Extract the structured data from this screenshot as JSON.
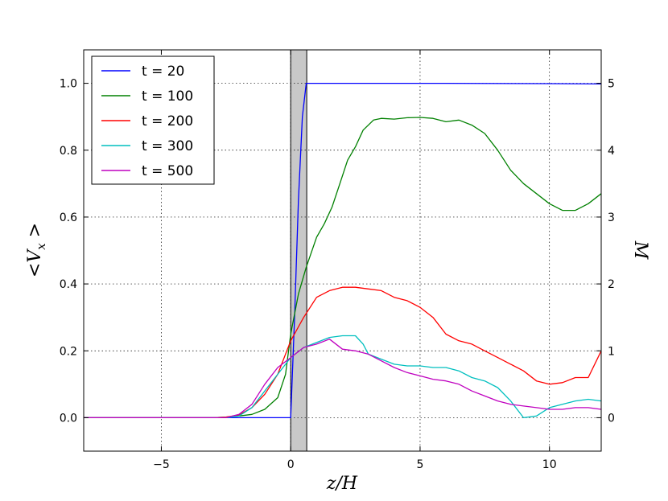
{
  "chart_data": {
    "type": "line",
    "title": "",
    "xlabel": "z/H",
    "ylabel_left": "<V_x>",
    "ylabel_right": "M",
    "xlim": [
      -8,
      12
    ],
    "ylim": [
      -0.1,
      1.1
    ],
    "ylim_right": [
      -0.5,
      5.5
    ],
    "xticks": [
      -5,
      0,
      5,
      10
    ],
    "xtick_labels": [
      "−5",
      "0",
      "5",
      "10"
    ],
    "yticks": [
      0.0,
      0.2,
      0.4,
      0.6,
      0.8,
      1.0
    ],
    "ytick_labels": [
      "0.0",
      "0.2",
      "0.4",
      "0.6",
      "0.8",
      "1.0"
    ],
    "yticks_right": [
      0,
      1,
      2,
      3,
      4,
      5
    ],
    "ytick_labels_right": [
      "0",
      "1",
      "2",
      "3",
      "4",
      "5"
    ],
    "grid": true,
    "legend_position": "top-left",
    "shaded_band": {
      "x0": 0.0,
      "x1": 0.62,
      "color": "#c8c8c8"
    },
    "series": [
      {
        "name": "t = 20",
        "color": "#0000ff",
        "points": [
          [
            -8,
            0.0
          ],
          [
            -0.2,
            0.0
          ],
          [
            0.0,
            0.0
          ],
          [
            0.15,
            0.3
          ],
          [
            0.3,
            0.65
          ],
          [
            0.45,
            0.9
          ],
          [
            0.6,
            1.0
          ],
          [
            2,
            1.0
          ],
          [
            6,
            1.0
          ],
          [
            10,
            0.999
          ],
          [
            12,
            0.998
          ]
        ]
      },
      {
        "name": "t = 100",
        "color": "#008000",
        "points": [
          [
            -8,
            0.0
          ],
          [
            -3,
            0.0
          ],
          [
            -2.5,
            0.002
          ],
          [
            -2,
            0.005
          ],
          [
            -1.5,
            0.01
          ],
          [
            -1.0,
            0.025
          ],
          [
            -0.5,
            0.06
          ],
          [
            -0.2,
            0.13
          ],
          [
            0.0,
            0.25
          ],
          [
            0.3,
            0.37
          ],
          [
            0.6,
            0.45
          ],
          [
            1.0,
            0.54
          ],
          [
            1.3,
            0.58
          ],
          [
            1.6,
            0.63
          ],
          [
            1.9,
            0.7
          ],
          [
            2.2,
            0.77
          ],
          [
            2.5,
            0.81
          ],
          [
            2.8,
            0.86
          ],
          [
            3.2,
            0.89
          ],
          [
            3.5,
            0.895
          ],
          [
            4,
            0.893
          ],
          [
            4.5,
            0.897
          ],
          [
            5,
            0.898
          ],
          [
            5.5,
            0.895
          ],
          [
            6,
            0.885
          ],
          [
            6.5,
            0.89
          ],
          [
            7,
            0.875
          ],
          [
            7.5,
            0.85
          ],
          [
            8,
            0.8
          ],
          [
            8.5,
            0.74
          ],
          [
            9,
            0.7
          ],
          [
            9.5,
            0.67
          ],
          [
            10,
            0.64
          ],
          [
            10.5,
            0.62
          ],
          [
            11,
            0.62
          ],
          [
            11.5,
            0.64
          ],
          [
            12,
            0.67
          ]
        ]
      },
      {
        "name": "t = 200",
        "color": "#ff0000",
        "points": [
          [
            -8,
            0.0
          ],
          [
            -3,
            0.0
          ],
          [
            -2.5,
            0.002
          ],
          [
            -2,
            0.008
          ],
          [
            -1.5,
            0.03
          ],
          [
            -1.0,
            0.07
          ],
          [
            -0.5,
            0.13
          ],
          [
            0.0,
            0.23
          ],
          [
            0.5,
            0.3
          ],
          [
            1.0,
            0.36
          ],
          [
            1.5,
            0.38
          ],
          [
            2.0,
            0.39
          ],
          [
            2.5,
            0.39
          ],
          [
            3.0,
            0.385
          ],
          [
            3.5,
            0.38
          ],
          [
            4,
            0.36
          ],
          [
            4.5,
            0.35
          ],
          [
            5,
            0.33
          ],
          [
            5.5,
            0.3
          ],
          [
            6,
            0.25
          ],
          [
            6.5,
            0.23
          ],
          [
            7,
            0.22
          ],
          [
            7.5,
            0.2
          ],
          [
            8,
            0.18
          ],
          [
            8.5,
            0.16
          ],
          [
            9,
            0.14
          ],
          [
            9.5,
            0.11
          ],
          [
            10,
            0.1
          ],
          [
            10.5,
            0.105
          ],
          [
            11,
            0.12
          ],
          [
            11.5,
            0.12
          ],
          [
            12,
            0.2
          ]
        ]
      },
      {
        "name": "t = 300",
        "color": "#00bfbf",
        "points": [
          [
            -8,
            0.0
          ],
          [
            -3,
            0.0
          ],
          [
            -2.5,
            0.0
          ],
          [
            -2,
            0.005
          ],
          [
            -1.5,
            0.03
          ],
          [
            -1.0,
            0.08
          ],
          [
            -0.5,
            0.13
          ],
          [
            0.0,
            0.18
          ],
          [
            0.5,
            0.21
          ],
          [
            1.0,
            0.225
          ],
          [
            1.5,
            0.24
          ],
          [
            2.0,
            0.245
          ],
          [
            2.5,
            0.245
          ],
          [
            2.8,
            0.22
          ],
          [
            3.0,
            0.19
          ],
          [
            3.5,
            0.175
          ],
          [
            4,
            0.16
          ],
          [
            4.5,
            0.155
          ],
          [
            5,
            0.155
          ],
          [
            5.5,
            0.15
          ],
          [
            6,
            0.15
          ],
          [
            6.5,
            0.14
          ],
          [
            7,
            0.12
          ],
          [
            7.5,
            0.11
          ],
          [
            8,
            0.09
          ],
          [
            8.5,
            0.05
          ],
          [
            9,
            0.0
          ],
          [
            9.5,
            0.005
          ],
          [
            10,
            0.03
          ],
          [
            10.5,
            0.04
          ],
          [
            11,
            0.05
          ],
          [
            11.5,
            0.055
          ],
          [
            12,
            0.05
          ]
        ]
      },
      {
        "name": "t = 500",
        "color": "#bf00bf",
        "points": [
          [
            -8,
            0.0
          ],
          [
            -3,
            0.0
          ],
          [
            -2.5,
            0.0
          ],
          [
            -2,
            0.01
          ],
          [
            -1.5,
            0.04
          ],
          [
            -1.0,
            0.1
          ],
          [
            -0.5,
            0.15
          ],
          [
            0.0,
            0.18
          ],
          [
            0.5,
            0.21
          ],
          [
            1.0,
            0.22
          ],
          [
            1.5,
            0.235
          ],
          [
            2.0,
            0.205
          ],
          [
            2.5,
            0.2
          ],
          [
            3.0,
            0.19
          ],
          [
            3.5,
            0.17
          ],
          [
            4,
            0.15
          ],
          [
            4.5,
            0.135
          ],
          [
            5,
            0.125
          ],
          [
            5.5,
            0.115
          ],
          [
            6,
            0.11
          ],
          [
            6.5,
            0.1
          ],
          [
            7,
            0.08
          ],
          [
            7.5,
            0.065
          ],
          [
            8,
            0.05
          ],
          [
            8.5,
            0.04
          ],
          [
            9,
            0.035
          ],
          [
            9.5,
            0.03
          ],
          [
            10,
            0.025
          ],
          [
            10.5,
            0.025
          ],
          [
            11,
            0.03
          ],
          [
            11.5,
            0.03
          ],
          [
            12,
            0.025
          ]
        ]
      }
    ]
  }
}
